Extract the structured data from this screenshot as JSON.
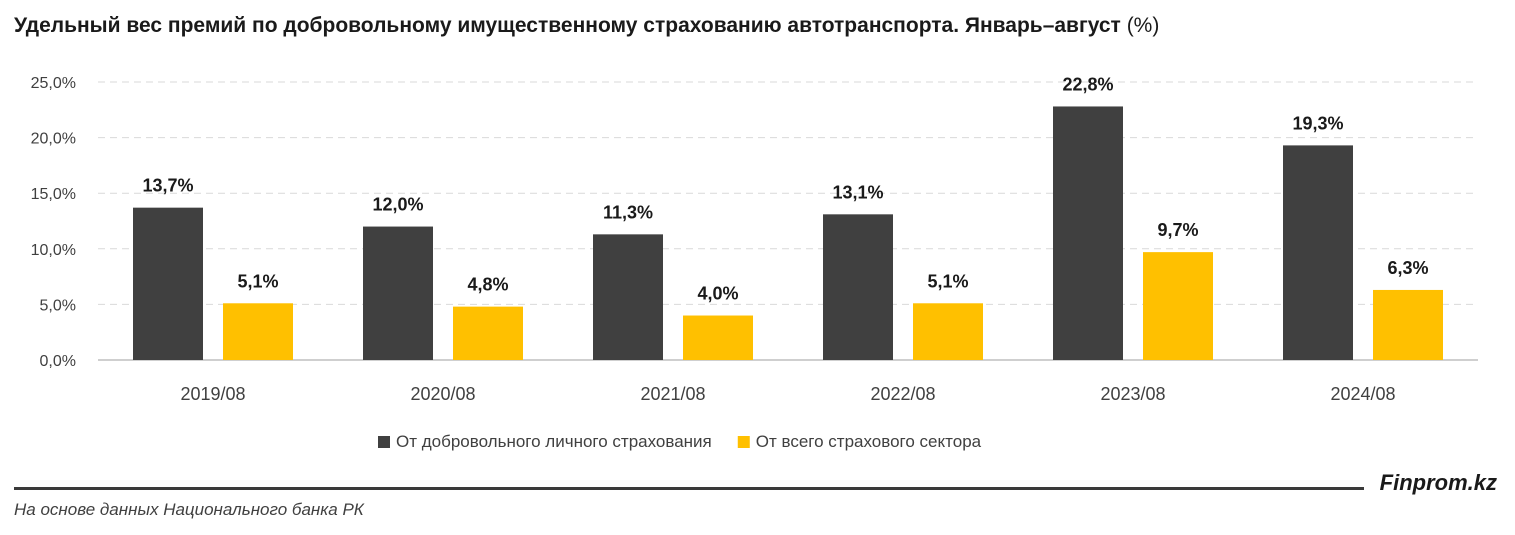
{
  "header": {
    "title": "Удельный вес премий по добровольному имущественному страхованию автотранспорта. Январь–август",
    "unit": "(%)"
  },
  "footer": {
    "brand": "Finprom.kz",
    "source": "На основе данных Национального банка РК"
  },
  "colors": {
    "series_dark": "#404040",
    "series_yellow": "#FFC000",
    "grid": "#d9d9d9"
  },
  "chart_data": {
    "type": "bar",
    "categories": [
      "2019/08",
      "2020/08",
      "2021/08",
      "2022/08",
      "2023/08",
      "2024/08"
    ],
    "series": [
      {
        "name": "От добровольного личного страхования",
        "values": [
          13.7,
          12.0,
          11.3,
          13.1,
          22.8,
          19.3
        ],
        "labels": [
          "13,7%",
          "12,0%",
          "11,3%",
          "13,1%",
          "22,8%",
          "19,3%"
        ]
      },
      {
        "name": "От всего страхового сектора",
        "values": [
          5.1,
          4.8,
          4.0,
          5.1,
          9.7,
          6.3
        ],
        "labels": [
          "5,1%",
          "4,8%",
          "4,0%",
          "5,1%",
          "9,7%",
          "6,3%"
        ]
      }
    ],
    "ylim": [
      0,
      25
    ],
    "yticks": [
      0,
      5,
      10,
      15,
      20,
      25
    ],
    "ytick_labels": [
      "0,0%",
      "5,0%",
      "10,0%",
      "15,0%",
      "20,0%",
      "25,0%"
    ],
    "grid": true,
    "legend_position": "bottom"
  }
}
